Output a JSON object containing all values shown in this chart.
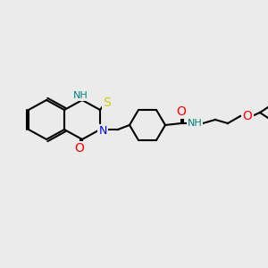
{
  "bg_color": "#ebebeb",
  "bond_color": "#000000",
  "bond_width": 1.5,
  "atom_colors": {
    "N": "#0000ff",
    "NH": "#008080",
    "S": "#cccc00",
    "O": "#ff0000",
    "C": "#000000"
  },
  "font_size": 9
}
